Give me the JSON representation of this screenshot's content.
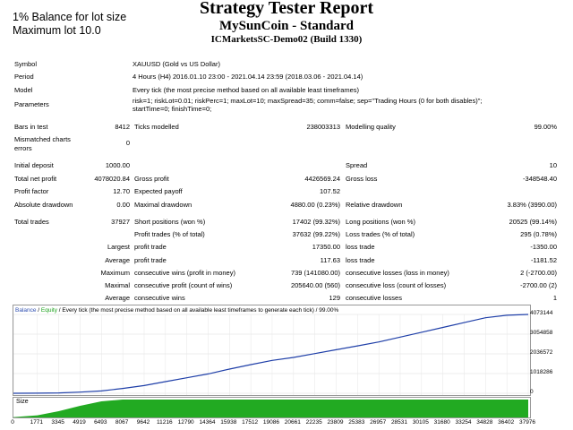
{
  "overlay": {
    "balance_line": "1% Balance for lot size",
    "max_lot_line": "Maximum lot 10.0"
  },
  "header": {
    "title": "Strategy Tester Report",
    "subtitle": "MySunCoin - Standard",
    "server": "ICMarketsSC-Demo02 (Build 1330)"
  },
  "info": {
    "symbol_label": "Symbol",
    "symbol_value": "XAUUSD (Gold vs US Dollar)",
    "period_label": "Period",
    "period_value": "4 Hours (H4) 2016.01.10 23:00 - 2021.04.14 23:59 (2018.03.06 - 2021.04.14)",
    "model_label": "Model",
    "model_value": "Every tick (the most precise method based on all available least timeframes)",
    "params_label": "Parameters",
    "params_line1": "risk=1; riskLot=0.01; riskPerc=1; maxLot=10; maxSpread=35; comm=false; sep=\"Trading Hours (0 for both disables)\";",
    "params_line2": "startTime=0; finishTime=0;"
  },
  "stats": {
    "bars_label": "Bars in test",
    "bars_value": "8412",
    "ticks_label": "Ticks modelled",
    "ticks_value": "238003313",
    "quality_label": "Modelling quality",
    "quality_value": "99.00%",
    "mismatch_label1": "Mismatched charts",
    "mismatch_label2": "errors",
    "mismatch_value": "0",
    "deposit_label": "Initial deposit",
    "deposit_value": "1000.00",
    "spread_label": "Spread",
    "spread_value": "10",
    "net_label": "Total net profit",
    "net_value": "4078020.84",
    "gross_profit_label": "Gross profit",
    "gross_profit_value": "4426569.24",
    "gross_loss_label": "Gross loss",
    "gross_loss_value": "-348548.40",
    "pf_label": "Profit factor",
    "pf_value": "12.70",
    "ep_label": "Expected payoff",
    "ep_value": "107.52",
    "abs_dd_label": "Absolute drawdown",
    "abs_dd_value": "0.00",
    "max_dd_label": "Maximal drawdown",
    "max_dd_value": "4880.00 (0.23%)",
    "rel_dd_label": "Relative drawdown",
    "rel_dd_value": "3.83% (3990.00)",
    "trades_label": "Total trades",
    "trades_value": "37927",
    "short_label": "Short positions (won %)",
    "short_value": "17402 (99.32%)",
    "long_label": "Long positions (won %)",
    "long_value": "20525 (99.14%)",
    "pt_label": "Profit trades (% of total)",
    "pt_value": "37632 (99.22%)",
    "lt_label": "Loss trades (% of total)",
    "lt_value": "295 (0.78%)",
    "largest_label": "Largest",
    "largest_pt_label": "profit trade",
    "largest_pt_value": "17350.00",
    "largest_lt_label": "loss trade",
    "largest_lt_value": "-1350.00",
    "average_label": "Average",
    "average_pt_label": "profit trade",
    "average_pt_value": "117.63",
    "average_lt_label": "loss trade",
    "average_lt_value": "-1181.52",
    "maximum_label": "Maximum",
    "max_cw_label": "consecutive wins (profit in money)",
    "max_cw_value": "739 (141080.00)",
    "max_cl_label": "consecutive losses (loss in money)",
    "max_cl_value": "2 (-2700.00)",
    "maximal_label": "Maximal",
    "maxl_cp_label": "consecutive profit (count of wins)",
    "maxl_cp_value": "205640.00 (560)",
    "maxl_cl_label": "consecutive loss (count of losses)",
    "maxl_cl_value": "-2700.00 (2)",
    "avg2_label": "Average",
    "avg_cw_label": "consecutive wins",
    "avg_cw_value": "129",
    "avg_cl_label": "consecutive losses",
    "avg_cl_value": "1"
  },
  "chart": {
    "legend_balance": "Balance",
    "legend_sep": " / ",
    "legend_equity": "Equity",
    "legend_rest": " / Every tick (the most precise method based on all available least timeframes to generate each tick) / 99.00%",
    "size_label": "Size",
    "balance_color": "#1f3fa8",
    "equity_color": "#22aa22",
    "size_color": "#22aa22"
  },
  "chart_data": {
    "type": "line",
    "title": "",
    "series": [
      {
        "name": "Balance",
        "x": [
          0,
          1771,
          3345,
          4919,
          6493,
          8067,
          9642,
          11216,
          12790,
          14364,
          15938,
          17512,
          19086,
          20661,
          22235,
          23809,
          25383,
          26957,
          28531,
          30105,
          31680,
          33254,
          34828,
          36402,
          37976
        ],
        "y": [
          1000,
          6000,
          20000,
          60000,
          120000,
          250000,
          400000,
          600000,
          800000,
          1000000,
          1250000,
          1480000,
          1700000,
          1850000,
          2050000,
          2250000,
          2450000,
          2650000,
          2900000,
          3150000,
          3400000,
          3650000,
          3900000,
          4030000,
          4073144
        ]
      }
    ],
    "y_ticks": [
      "4073144",
      "3054858",
      "2036572",
      "1018286",
      "0"
    ],
    "x_ticks": [
      "0",
      "1771",
      "3345",
      "4919",
      "6493",
      "8067",
      "9642",
      "11216",
      "12790",
      "14364",
      "15938",
      "17512",
      "19086",
      "20661",
      "22235",
      "23809",
      "25383",
      "26957",
      "28531",
      "30105",
      "31680",
      "33254",
      "34828",
      "36402",
      "37976"
    ],
    "ylim": [
      0,
      4073144
    ],
    "xlim": [
      0,
      37976
    ],
    "size_series": {
      "x": [
        0,
        1771,
        3345,
        4919,
        6493,
        8067,
        37976
      ],
      "y": [
        0.02,
        0.12,
        0.35,
        0.65,
        0.9,
        1.0,
        1.0
      ]
    }
  }
}
